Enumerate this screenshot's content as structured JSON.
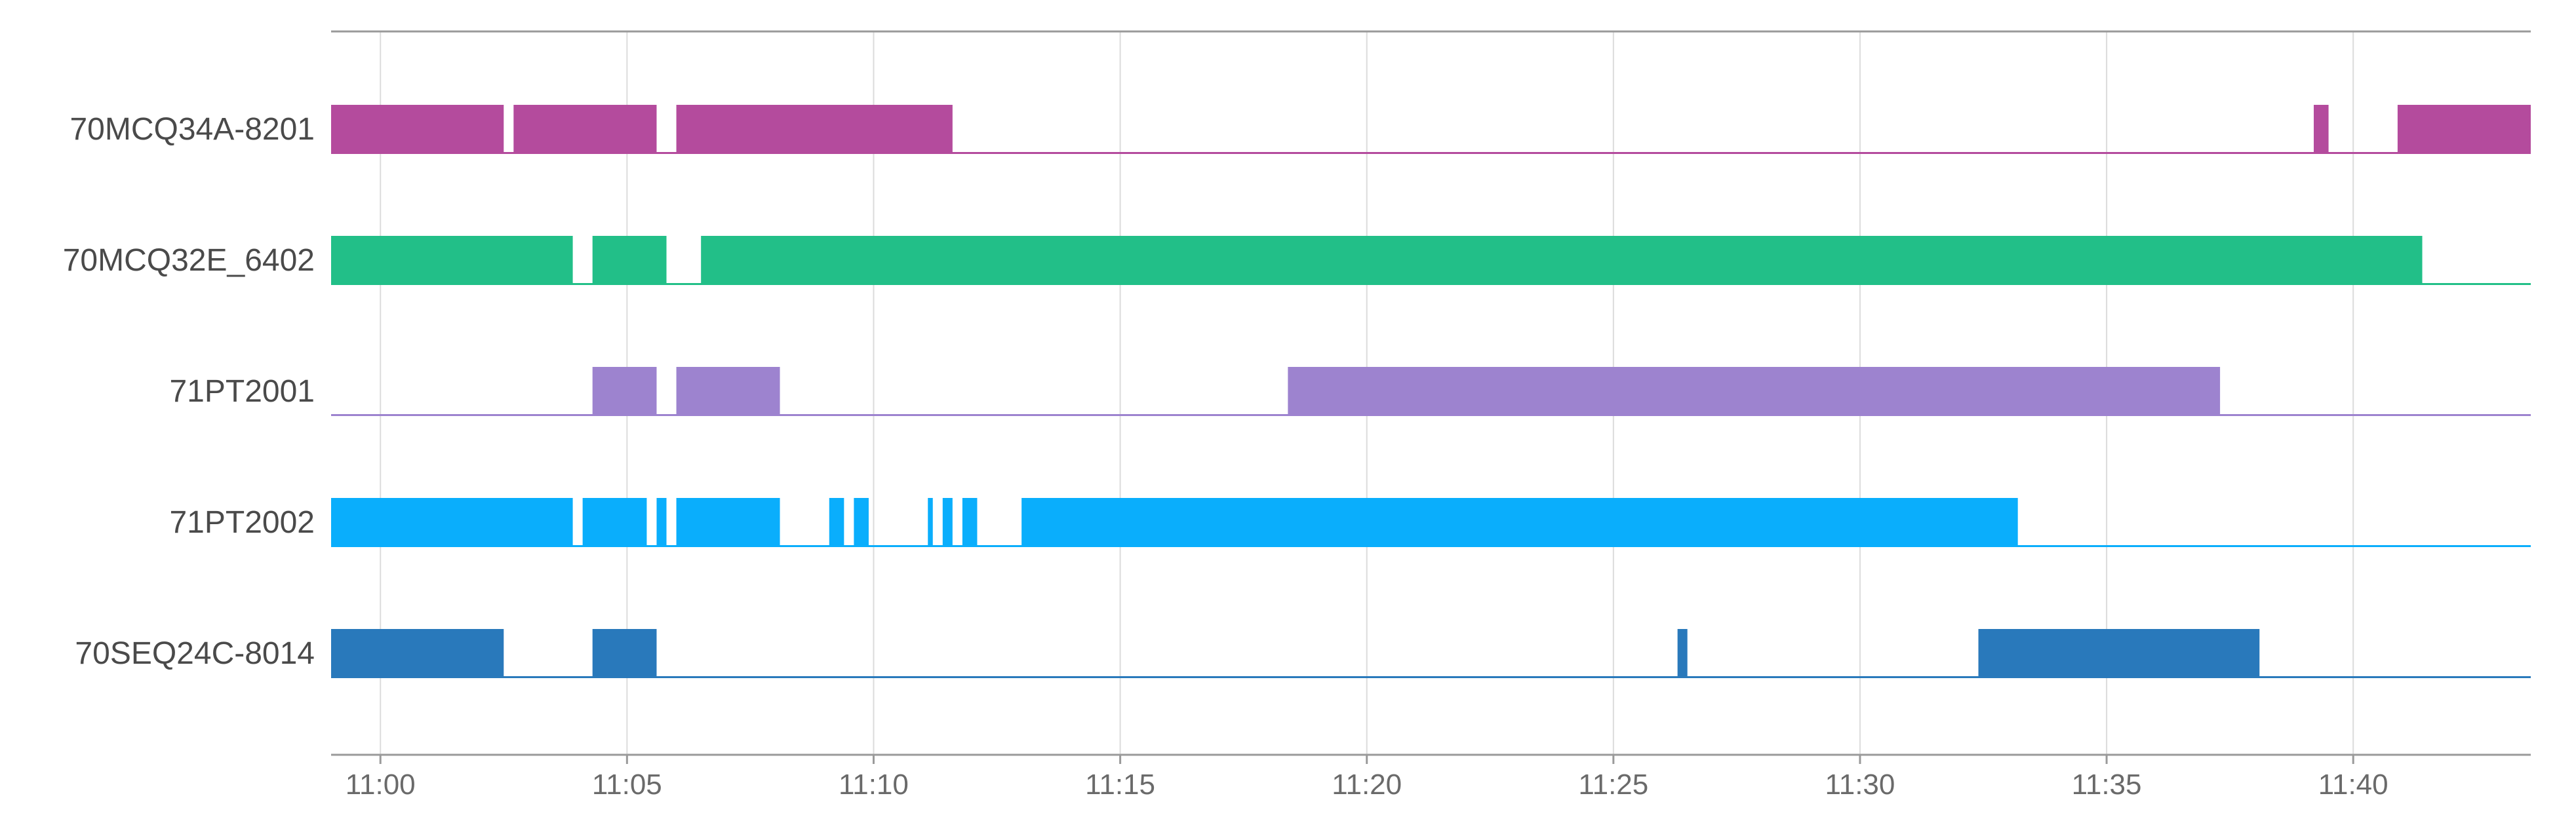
{
  "chart_data": {
    "type": "timeline",
    "x_axis": {
      "range": [
        "10:59",
        "11:43.6"
      ],
      "ticks": [
        "11:00",
        "11:05",
        "11:10",
        "11:15",
        "11:20",
        "11:25",
        "11:30",
        "11:35",
        "11:40"
      ]
    },
    "grid": "vertical",
    "series": [
      {
        "name": "70MCQ34A-8201",
        "color": "#b44b9d",
        "on_intervals": [
          [
            "10:59",
            "11:02.5"
          ],
          [
            "11:02.7",
            "11:05.6"
          ],
          [
            "11:06.0",
            "11:11.6"
          ],
          [
            "11:39.2",
            "11:39.5"
          ],
          [
            "11:40.9",
            "11:43.6"
          ]
        ]
      },
      {
        "name": "70MCQ32E_6402",
        "color": "#22bf88",
        "on_intervals": [
          [
            "10:59",
            "11:03.9"
          ],
          [
            "11:04.3",
            "11:05.8"
          ],
          [
            "11:06.5",
            "11:41.4"
          ]
        ]
      },
      {
        "name": "71PT2001",
        "color": "#9d83cf",
        "on_intervals": [
          [
            "11:04.3",
            "11:05.6"
          ],
          [
            "11:06.0",
            "11:08.1"
          ],
          [
            "11:18.4",
            "11:37.3"
          ]
        ]
      },
      {
        "name": "71PT2002",
        "color": "#0aaefc",
        "on_intervals": [
          [
            "10:59",
            "11:03.9"
          ],
          [
            "11:04.1",
            "11:05.4"
          ],
          [
            "11:05.6",
            "11:05.8"
          ],
          [
            "11:06.0",
            "11:08.1"
          ],
          [
            "11:09.1",
            "11:09.4"
          ],
          [
            "11:09.6",
            "11:09.9"
          ],
          [
            "11:11.1",
            "11:11.2"
          ],
          [
            "11:11.4",
            "11:11.6"
          ],
          [
            "11:11.8",
            "11:12.1"
          ],
          [
            "11:13.0",
            "11:33.2"
          ]
        ]
      },
      {
        "name": "70SEQ24C-8014",
        "color": "#2979bb",
        "on_intervals": [
          [
            "10:59",
            "11:02.5"
          ],
          [
            "11:04.3",
            "11:05.6"
          ],
          [
            "11:26.3",
            "11:26.5"
          ],
          [
            "11:32.4",
            "11:38.1"
          ]
        ]
      }
    ]
  }
}
